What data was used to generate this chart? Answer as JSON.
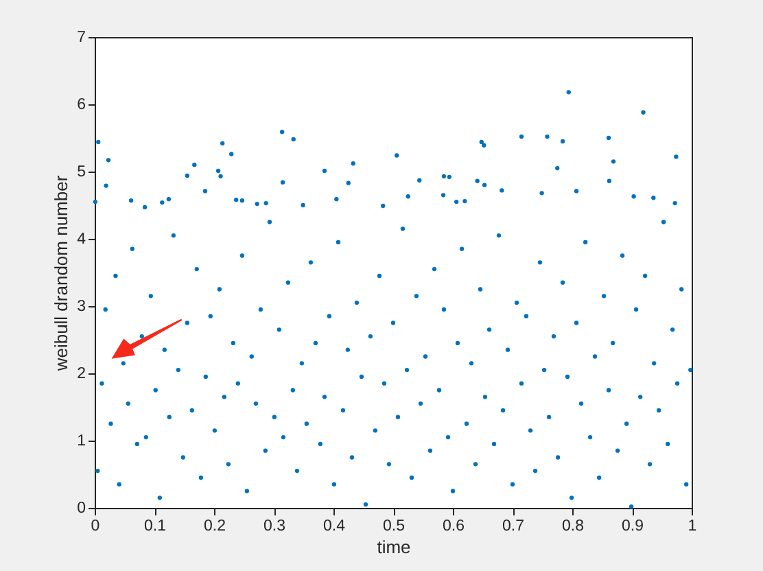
{
  "chart_data": {
    "type": "scatter",
    "xlabel": "time",
    "ylabel": "weibull drandom number",
    "marker": "circle",
    "xlim": [
      0,
      1
    ],
    "xticks": [
      0,
      0.1,
      0.2,
      0.3,
      0.4,
      0.5,
      0.6,
      0.7,
      0.8,
      0.9,
      1
    ],
    "ylim": [
      0,
      7
    ],
    "yticks": [
      0,
      1,
      2,
      3,
      4,
      5,
      6,
      7
    ],
    "series": [
      {
        "color": "#0072bd",
        "x": [
          0.005,
          0.012,
          0.018,
          0.027,
          0.035,
          0.041,
          0.048,
          0.056,
          0.063,
          0.071,
          0.079,
          0.086,
          0.094,
          0.102,
          0.109,
          0.117,
          0.125,
          0.132,
          0.14,
          0.148,
          0.155,
          0.163,
          0.171,
          0.178,
          0.186,
          0.194,
          0.201,
          0.209,
          0.217,
          0.224,
          0.232,
          0.24,
          0.247,
          0.255,
          0.263,
          0.27,
          0.278,
          0.286,
          0.293,
          0.301,
          0.309,
          0.316,
          0.324,
          0.332,
          0.339,
          0.347,
          0.355,
          0.362,
          0.37,
          0.378,
          0.385,
          0.393,
          0.401,
          0.408,
          0.416,
          0.424,
          0.431,
          0.439,
          0.447,
          0.454,
          0.462,
          0.47,
          0.477,
          0.485,
          0.493,
          0.5,
          0.508,
          0.516,
          0.523,
          0.531,
          0.539,
          0.546,
          0.554,
          0.562,
          0.569,
          0.577,
          0.585,
          0.592,
          0.6,
          0.608,
          0.615,
          0.623,
          0.631,
          0.638,
          0.646,
          0.654,
          0.661,
          0.669,
          0.677,
          0.684,
          0.692,
          0.7,
          0.707,
          0.715,
          0.723,
          0.73,
          0.738,
          0.746,
          0.753,
          0.761,
          0.769,
          0.776,
          0.784,
          0.792,
          0.799,
          0.807,
          0.815,
          0.822,
          0.83,
          0.838,
          0.845,
          0.853,
          0.861,
          0.868,
          0.876,
          0.884,
          0.891,
          0.899,
          0.907,
          0.914,
          0.922,
          0.93,
          0.937,
          0.945,
          0.953,
          0.96,
          0.968,
          0.976,
          0.983,
          0.991,
          0.998,
          0.006,
          0.023,
          0.019,
          0.001,
          0.314,
          0.333,
          0.214,
          0.229,
          0.167,
          0.155,
          0.207,
          0.211,
          0.385,
          0.433,
          0.425,
          0.315,
          0.506,
          0.185,
          0.061,
          0.124,
          0.113,
          0.237,
          0.247,
          0.272,
          0.287,
          0.349,
          0.405,
          0.483,
          0.084,
          0.794,
          0.919,
          0.648,
          0.652,
          0.715,
          0.758,
          0.784,
          0.861,
          0.869,
          0.974,
          0.775,
          0.585,
          0.594,
          0.544,
          0.641,
          0.653,
          0.862,
          0.682,
          0.807,
          0.749,
          0.903,
          0.936,
          0.972,
          0.525,
          0.584,
          0.606,
          0.62
        ],
        "values": [
          0.55,
          1.85,
          2.95,
          1.25,
          3.45,
          0.35,
          2.15,
          1.55,
          3.85,
          0.95,
          2.55,
          1.05,
          3.15,
          1.75,
          0.15,
          2.35,
          1.35,
          4.05,
          2.05,
          0.75,
          2.75,
          1.45,
          3.55,
          0.45,
          1.95,
          2.85,
          1.15,
          3.25,
          1.65,
          0.65,
          2.45,
          1.85,
          3.75,
          0.25,
          2.25,
          1.55,
          2.95,
          0.85,
          4.25,
          1.35,
          2.65,
          1.05,
          3.35,
          1.75,
          0.55,
          2.15,
          1.25,
          3.65,
          2.45,
          0.95,
          1.65,
          2.85,
          0.35,
          3.95,
          1.45,
          2.35,
          0.75,
          3.05,
          1.95,
          0.05,
          2.55,
          1.15,
          3.45,
          1.85,
          0.65,
          2.75,
          1.35,
          4.15,
          2.05,
          0.45,
          3.15,
          1.55,
          2.25,
          0.85,
          3.55,
          1.75,
          2.95,
          1.05,
          0.25,
          2.45,
          3.85,
          1.25,
          2.15,
          0.65,
          3.25,
          1.65,
          2.65,
          0.95,
          4.05,
          1.45,
          2.35,
          0.35,
          3.05,
          1.85,
          2.85,
          1.15,
          0.55,
          3.65,
          2.05,
          1.35,
          2.55,
          0.75,
          3.35,
          1.95,
          0.15,
          2.75,
          1.55,
          3.95,
          1.05,
          2.25,
          0.45,
          3.15,
          1.75,
          2.45,
          0.85,
          3.75,
          1.25,
          0.02,
          2.95,
          1.65,
          3.45,
          0.65,
          2.15,
          1.45,
          4.25,
          0.95,
          2.65,
          1.85,
          3.25,
          0.35,
          2.05,
          5.44,
          5.17,
          4.79,
          4.55,
          5.59,
          5.48,
          5.42,
          5.26,
          5.1,
          4.94,
          5.01,
          4.93,
          5.01,
          5.12,
          4.83,
          4.84,
          5.24,
          4.71,
          4.57,
          4.59,
          4.54,
          4.58,
          4.57,
          4.52,
          4.53,
          4.5,
          4.59,
          4.49,
          4.47,
          6.18,
          5.88,
          5.44,
          5.39,
          5.52,
          5.52,
          5.45,
          5.5,
          5.15,
          5.22,
          5.05,
          4.93,
          4.92,
          4.87,
          4.86,
          4.8,
          4.86,
          4.72,
          4.71,
          4.68,
          4.63,
          4.61,
          4.53,
          4.63,
          4.65,
          4.55,
          4.56
        ]
      }
    ]
  }
}
